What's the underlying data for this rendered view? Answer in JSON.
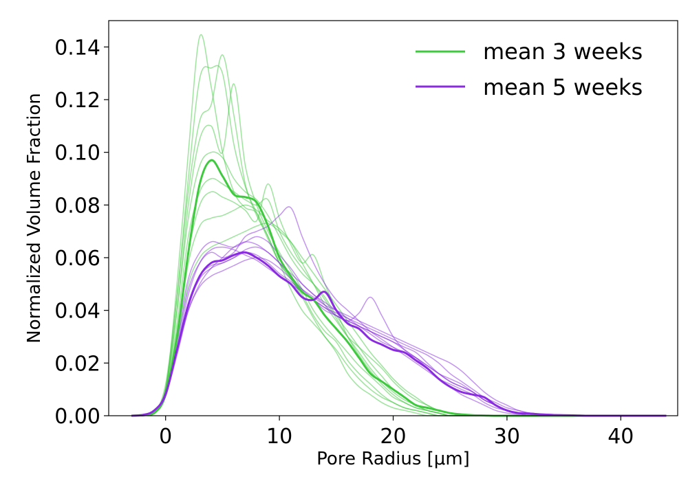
{
  "chart_data": {
    "type": "line",
    "xlabel": "Pore Radius [μm]",
    "ylabel": "Normalized Volume Fraction",
    "xlim": [
      -5,
      45
    ],
    "ylim": [
      0,
      0.15
    ],
    "xticks": [
      0,
      10,
      20,
      30,
      40
    ],
    "yticks": [
      0.0,
      0.02,
      0.04,
      0.06,
      0.08,
      0.1,
      0.12,
      0.14
    ],
    "ytick_labels": [
      "0.00",
      "0.02",
      "0.04",
      "0.06",
      "0.08",
      "0.10",
      "0.12",
      "0.14"
    ],
    "grid": false,
    "legend_position": "top-right",
    "legend": [
      "mean 3 weeks",
      "mean 5 weeks"
    ],
    "colors": {
      "green": "#3ec93e",
      "purple": "#8a2be2"
    },
    "x": [
      -3,
      -2,
      -1,
      0,
      1,
      2,
      3,
      4,
      5,
      6,
      7,
      8,
      9,
      10,
      11,
      12,
      13,
      14,
      15,
      16,
      17,
      18,
      19,
      20,
      21,
      22,
      23,
      24,
      25,
      26,
      27,
      28,
      29,
      30,
      31,
      32,
      33,
      34,
      35,
      36,
      37,
      38,
      39,
      40,
      41,
      42,
      43,
      44
    ],
    "series": [
      {
        "name": "mean 3 weeks",
        "color": "#3ec93e",
        "role": "mean",
        "values": [
          0,
          0.0003,
          0.001,
          0.008,
          0.03,
          0.062,
          0.088,
          0.097,
          0.091,
          0.084,
          0.083,
          0.081,
          0.072,
          0.06,
          0.053,
          0.047,
          0.044,
          0.038,
          0.033,
          0.028,
          0.022,
          0.016,
          0.013,
          0.01,
          0.007,
          0.004,
          0.003,
          0.002,
          0.001,
          0.0005,
          0.0002,
          0.0001,
          0,
          0,
          0,
          0,
          0,
          0,
          0,
          0,
          0,
          0,
          0,
          0,
          0,
          0,
          0,
          0
        ]
      },
      {
        "name": "mean 5 weeks",
        "color": "#8a2be2",
        "role": "mean",
        "values": [
          0,
          0.0003,
          0.002,
          0.008,
          0.025,
          0.042,
          0.053,
          0.058,
          0.059,
          0.061,
          0.062,
          0.06,
          0.057,
          0.053,
          0.05,
          0.045,
          0.044,
          0.047,
          0.04,
          0.035,
          0.033,
          0.029,
          0.027,
          0.025,
          0.024,
          0.021,
          0.018,
          0.014,
          0.011,
          0.009,
          0.008,
          0.007,
          0.004,
          0.002,
          0.001,
          0.0008,
          0.0005,
          0.0003,
          0.0002,
          0.0001,
          0,
          0,
          0,
          0,
          0,
          0,
          0,
          0
        ]
      },
      {
        "color": "#3ec93e",
        "role": "sample",
        "values": [
          0,
          0,
          0.001,
          0.01,
          0.05,
          0.1,
          0.144,
          0.125,
          0.1,
          0.085,
          0.079,
          0.077,
          0.068,
          0.058,
          0.048,
          0.04,
          0.035,
          0.03,
          0.024,
          0.016,
          0.011,
          0.008,
          0.005,
          0.003,
          0.002,
          0.001,
          0,
          0,
          0,
          0,
          0,
          0,
          0,
          0,
          0,
          0,
          0,
          0,
          0,
          0,
          0,
          0,
          0,
          0,
          0,
          0,
          0,
          0
        ]
      },
      {
        "color": "#3ec93e",
        "role": "sample",
        "values": [
          0,
          0,
          0.001,
          0.01,
          0.045,
          0.09,
          0.128,
          0.132,
          0.13,
          0.103,
          0.087,
          0.076,
          0.068,
          0.058,
          0.052,
          0.045,
          0.037,
          0.03,
          0.025,
          0.019,
          0.014,
          0.01,
          0.007,
          0.005,
          0.003,
          0.002,
          0.001,
          0,
          0,
          0,
          0,
          0,
          0,
          0,
          0,
          0,
          0,
          0,
          0,
          0,
          0,
          0,
          0,
          0,
          0,
          0,
          0,
          0
        ]
      },
      {
        "color": "#3ec93e",
        "role": "sample",
        "values": [
          0,
          0,
          0.001,
          0.012,
          0.045,
          0.085,
          0.112,
          0.118,
          0.137,
          0.114,
          0.088,
          0.077,
          0.067,
          0.058,
          0.052,
          0.046,
          0.038,
          0.032,
          0.028,
          0.021,
          0.016,
          0.012,
          0.008,
          0.005,
          0.003,
          0.002,
          0.001,
          0,
          0,
          0,
          0,
          0,
          0,
          0,
          0,
          0,
          0,
          0,
          0,
          0,
          0,
          0,
          0,
          0,
          0,
          0,
          0,
          0
        ]
      },
      {
        "color": "#3ec93e",
        "role": "sample",
        "values": [
          0,
          0,
          0.001,
          0.01,
          0.04,
          0.08,
          0.105,
          0.11,
          0.1,
          0.126,
          0.095,
          0.08,
          0.07,
          0.062,
          0.055,
          0.048,
          0.04,
          0.034,
          0.029,
          0.024,
          0.019,
          0.015,
          0.011,
          0.007,
          0.005,
          0.003,
          0.002,
          0.001,
          0,
          0,
          0,
          0,
          0,
          0,
          0,
          0,
          0,
          0,
          0,
          0,
          0,
          0,
          0,
          0,
          0,
          0,
          0,
          0
        ]
      },
      {
        "color": "#3ec93e",
        "role": "sample",
        "values": [
          0,
          0,
          0.001,
          0.01,
          0.04,
          0.075,
          0.095,
          0.1,
          0.098,
          0.09,
          0.085,
          0.082,
          0.076,
          0.068,
          0.06,
          0.054,
          0.05,
          0.045,
          0.038,
          0.032,
          0.026,
          0.02,
          0.015,
          0.01,
          0.007,
          0.004,
          0.002,
          0.001,
          0,
          0,
          0,
          0,
          0,
          0,
          0,
          0,
          0,
          0,
          0,
          0,
          0,
          0,
          0,
          0,
          0,
          0,
          0,
          0
        ]
      },
      {
        "color": "#3ec93e",
        "role": "sample",
        "values": [
          0,
          0,
          0.001,
          0.01,
          0.035,
          0.068,
          0.085,
          0.09,
          0.088,
          0.085,
          0.082,
          0.08,
          0.082,
          0.07,
          0.062,
          0.056,
          0.05,
          0.044,
          0.037,
          0.03,
          0.024,
          0.018,
          0.013,
          0.009,
          0.006,
          0.004,
          0.002,
          0.001,
          0,
          0,
          0,
          0,
          0,
          0,
          0,
          0,
          0,
          0,
          0,
          0,
          0,
          0,
          0,
          0,
          0,
          0,
          0,
          0
        ]
      },
      {
        "color": "#3ec93e",
        "role": "sample",
        "values": [
          0,
          0,
          0.001,
          0.009,
          0.032,
          0.062,
          0.08,
          0.085,
          0.083,
          0.081,
          0.078,
          0.074,
          0.088,
          0.075,
          0.065,
          0.058,
          0.061,
          0.05,
          0.04,
          0.03,
          0.023,
          0.017,
          0.012,
          0.008,
          0.005,
          0.003,
          0.002,
          0.001,
          0,
          0,
          0,
          0,
          0,
          0,
          0,
          0,
          0,
          0,
          0,
          0,
          0,
          0,
          0,
          0,
          0,
          0,
          0,
          0
        ]
      },
      {
        "color": "#3ec93e",
        "role": "sample",
        "values": [
          0,
          0,
          0.001,
          0.008,
          0.03,
          0.058,
          0.072,
          0.075,
          0.076,
          0.078,
          0.08,
          0.078,
          0.074,
          0.071,
          0.066,
          0.058,
          0.05,
          0.042,
          0.036,
          0.03,
          0.026,
          0.022,
          0.018,
          0.013,
          0.009,
          0.006,
          0.004,
          0.002,
          0.001,
          0,
          0,
          0,
          0,
          0,
          0,
          0,
          0,
          0,
          0,
          0,
          0,
          0,
          0,
          0,
          0,
          0,
          0,
          0
        ]
      },
      {
        "color": "#3ec93e",
        "role": "sample",
        "values": [
          0,
          0,
          0.001,
          0.008,
          0.028,
          0.05,
          0.06,
          0.064,
          0.066,
          0.068,
          0.07,
          0.072,
          0.073,
          0.07,
          0.066,
          0.06,
          0.054,
          0.048,
          0.042,
          0.036,
          0.03,
          0.024,
          0.019,
          0.014,
          0.01,
          0.007,
          0.004,
          0.002,
          0.001,
          0,
          0,
          0,
          0,
          0,
          0,
          0,
          0,
          0,
          0,
          0,
          0,
          0,
          0,
          0,
          0,
          0,
          0,
          0
        ]
      },
      {
        "color": "#8a2be2",
        "role": "sample",
        "values": [
          0,
          0,
          0.002,
          0.009,
          0.03,
          0.052,
          0.062,
          0.066,
          0.065,
          0.064,
          0.066,
          0.068,
          0.066,
          0.061,
          0.056,
          0.05,
          0.046,
          0.042,
          0.038,
          0.036,
          0.034,
          0.032,
          0.03,
          0.028,
          0.025,
          0.022,
          0.018,
          0.014,
          0.011,
          0.008,
          0.006,
          0.004,
          0.002,
          0.001,
          0.0005,
          0,
          0,
          0,
          0,
          0,
          0,
          0,
          0,
          0,
          0,
          0,
          0,
          0
        ]
      },
      {
        "color": "#8a2be2",
        "role": "sample",
        "values": [
          0,
          0,
          0.002,
          0.009,
          0.028,
          0.048,
          0.058,
          0.062,
          0.06,
          0.062,
          0.068,
          0.07,
          0.072,
          0.076,
          0.079,
          0.068,
          0.058,
          0.05,
          0.044,
          0.04,
          0.036,
          0.032,
          0.029,
          0.026,
          0.023,
          0.02,
          0.017,
          0.014,
          0.012,
          0.01,
          0.008,
          0.005,
          0.003,
          0.002,
          0.001,
          0,
          0,
          0,
          0,
          0,
          0,
          0,
          0,
          0,
          0,
          0,
          0,
          0
        ]
      },
      {
        "color": "#8a2be2",
        "role": "sample",
        "values": [
          0,
          0,
          0.002,
          0.008,
          0.025,
          0.043,
          0.053,
          0.057,
          0.058,
          0.06,
          0.063,
          0.064,
          0.062,
          0.058,
          0.053,
          0.048,
          0.044,
          0.04,
          0.038,
          0.036,
          0.039,
          0.045,
          0.038,
          0.03,
          0.025,
          0.022,
          0.019,
          0.016,
          0.013,
          0.011,
          0.009,
          0.006,
          0.004,
          0.002,
          0.001,
          0,
          0,
          0,
          0,
          0,
          0,
          0,
          0,
          0,
          0,
          0,
          0,
          0
        ]
      },
      {
        "color": "#8a2be2",
        "role": "sample",
        "values": [
          0,
          0,
          0.002,
          0.008,
          0.026,
          0.046,
          0.058,
          0.063,
          0.064,
          0.063,
          0.061,
          0.059,
          0.056,
          0.053,
          0.05,
          0.047,
          0.044,
          0.041,
          0.038,
          0.036,
          0.034,
          0.032,
          0.03,
          0.028,
          0.026,
          0.024,
          0.02,
          0.016,
          0.013,
          0.011,
          0.009,
          0.006,
          0.004,
          0.002,
          0.001,
          0.001,
          0.0006,
          0.0004,
          0.0003,
          0.0002,
          0.0001,
          0,
          0,
          0,
          0,
          0,
          0,
          0
        ]
      },
      {
        "color": "#8a2be2",
        "role": "sample",
        "values": [
          0,
          0,
          0.002,
          0.008,
          0.024,
          0.04,
          0.05,
          0.056,
          0.06,
          0.064,
          0.066,
          0.065,
          0.062,
          0.058,
          0.054,
          0.05,
          0.046,
          0.043,
          0.04,
          0.037,
          0.034,
          0.031,
          0.028,
          0.026,
          0.024,
          0.022,
          0.019,
          0.016,
          0.014,
          0.012,
          0.009,
          0.006,
          0.004,
          0.002,
          0.001,
          0.0008,
          0.0006,
          0.0004,
          0.0003,
          0.0003,
          0.0002,
          0.0001,
          0,
          0,
          0,
          0,
          0,
          0
        ]
      },
      {
        "color": "#8a2be2",
        "role": "sample",
        "values": [
          0,
          0,
          0.002,
          0.008,
          0.024,
          0.042,
          0.052,
          0.056,
          0.058,
          0.06,
          0.062,
          0.061,
          0.058,
          0.054,
          0.051,
          0.047,
          0.044,
          0.041,
          0.039,
          0.037,
          0.035,
          0.033,
          0.031,
          0.029,
          0.027,
          0.025,
          0.023,
          0.02,
          0.016,
          0.013,
          0.01,
          0.007,
          0.005,
          0.003,
          0.002,
          0.001,
          0.0006,
          0.0003,
          0.0001,
          0,
          0,
          0,
          0,
          0,
          0,
          0,
          0,
          0
        ]
      },
      {
        "color": "#8a2be2",
        "role": "sample",
        "values": [
          0,
          0,
          0.002,
          0.008,
          0.023,
          0.04,
          0.049,
          0.053,
          0.055,
          0.057,
          0.059,
          0.06,
          0.059,
          0.056,
          0.052,
          0.048,
          0.045,
          0.042,
          0.04,
          0.038,
          0.036,
          0.034,
          0.032,
          0.03,
          0.028,
          0.026,
          0.024,
          0.022,
          0.02,
          0.017,
          0.013,
          0.009,
          0.006,
          0.004,
          0.002,
          0.001,
          0.0007,
          0.0005,
          0.0003,
          0.0002,
          0.0001,
          0,
          0,
          0,
          0,
          0,
          0,
          0
        ]
      }
    ]
  }
}
